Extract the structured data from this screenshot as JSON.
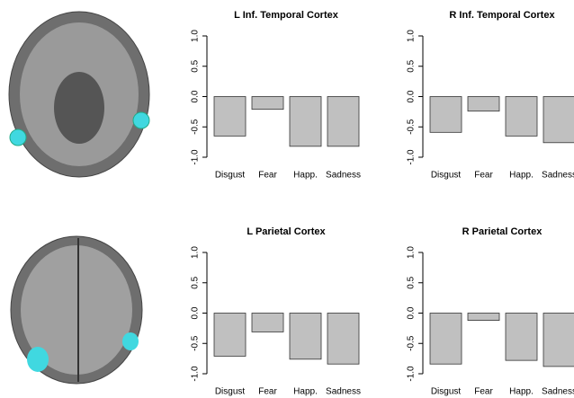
{
  "chart_data": [
    {
      "type": "bar",
      "title": "L Inf. Temporal Cortex",
      "categories": [
        "Disgust",
        "Fear",
        "Happ.",
        "Sadness"
      ],
      "values": [
        -0.65,
        -0.21,
        -0.82,
        -0.82
      ],
      "color": "#c0c0c0",
      "ylim": [
        -1,
        1
      ],
      "yticks": [
        {
          "value": 1,
          "label": "1.0"
        },
        0.5,
        {
          "value": 0,
          "label": "0.0"
        },
        -0.5,
        {
          "value": -1,
          "label": "-1.0"
        }
      ]
    },
    {
      "type": "bar",
      "title": "R Inf. Temporal Cortex",
      "categories": [
        "Disgust",
        "Fear",
        "Happ.",
        "Sadness"
      ],
      "values": [
        -0.59,
        -0.24,
        -0.65,
        -0.76
      ],
      "color": "#c0c0c0",
      "ylim": [
        -1,
        1
      ],
      "yticks": [
        {
          "value": 1,
          "label": "1.0"
        },
        0.5,
        {
          "value": 0,
          "label": "0.0"
        },
        -0.5,
        {
          "value": -1,
          "label": "-1.0"
        }
      ]
    },
    {
      "type": "bar",
      "title": "L Parietal Cortex",
      "categories": [
        "Disgust",
        "Fear",
        "Happ.",
        "Sadness"
      ],
      "values": [
        -0.71,
        -0.31,
        -0.76,
        -0.84
      ],
      "color": "#c0c0c0",
      "ylim": [
        -1,
        1
      ],
      "yticks": [
        {
          "value": 1,
          "label": "1.0"
        },
        0.5,
        {
          "value": 0,
          "label": "0.0"
        },
        -0.5,
        {
          "value": -1,
          "label": "-1.0"
        }
      ]
    },
    {
      "type": "bar",
      "title": "R Parietal Cortex",
      "categories": [
        "Disgust",
        "Fear",
        "Happ.",
        "Sadness"
      ],
      "values": [
        -0.84,
        -0.12,
        -0.78,
        -0.88
      ],
      "color": "#c0c0c0",
      "ylim": [
        -1,
        1
      ],
      "yticks": [
        {
          "value": 1,
          "label": "1.0"
        },
        0.5,
        {
          "value": 0,
          "label": "0.0"
        },
        -0.5,
        {
          "value": -1,
          "label": "-1.0"
        }
      ]
    }
  ]
}
